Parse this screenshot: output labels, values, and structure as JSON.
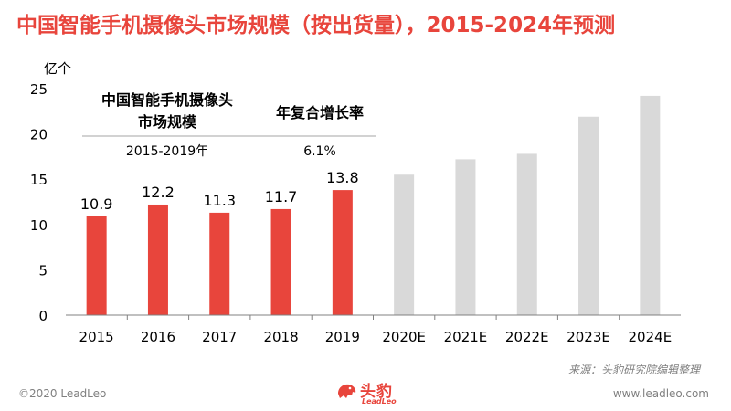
{
  "title": "中国智能手机摄像头市场规模（按出货量），2015-2024年预测",
  "chart_data": {
    "type": "bar",
    "ylabel": "亿个",
    "ylim": [
      0,
      25
    ],
    "yticks": [
      0,
      5,
      10,
      15,
      20,
      25
    ],
    "categories": [
      "2015",
      "2016",
      "2017",
      "2018",
      "2019",
      "2020E",
      "2021E",
      "2022E",
      "2023E",
      "2024E"
    ],
    "values": [
      10.9,
      12.2,
      11.3,
      11.7,
      13.8,
      15.5,
      17.2,
      17.8,
      21.9,
      24.2
    ],
    "data_labels": [
      "10.9",
      "12.2",
      "11.3",
      "11.7",
      "13.8",
      "",
      "",
      "",
      "",
      ""
    ],
    "colors": {
      "actual": "#e8453c",
      "forecast": "#d9d9d9",
      "axis": "#808080"
    },
    "cagr_table": {
      "header_left": "中国智能手机摄像头市场规模",
      "header_right": "年复合增长率",
      "period": "2015-2019年",
      "rate": "6.1%"
    }
  },
  "source": "来源：头豹研究院编辑整理",
  "footer": {
    "copyright": "©2020 LeadLeo",
    "website": "www.leadleo.com",
    "brand_name": "头豹",
    "brand_sub": "LeadLeo"
  }
}
